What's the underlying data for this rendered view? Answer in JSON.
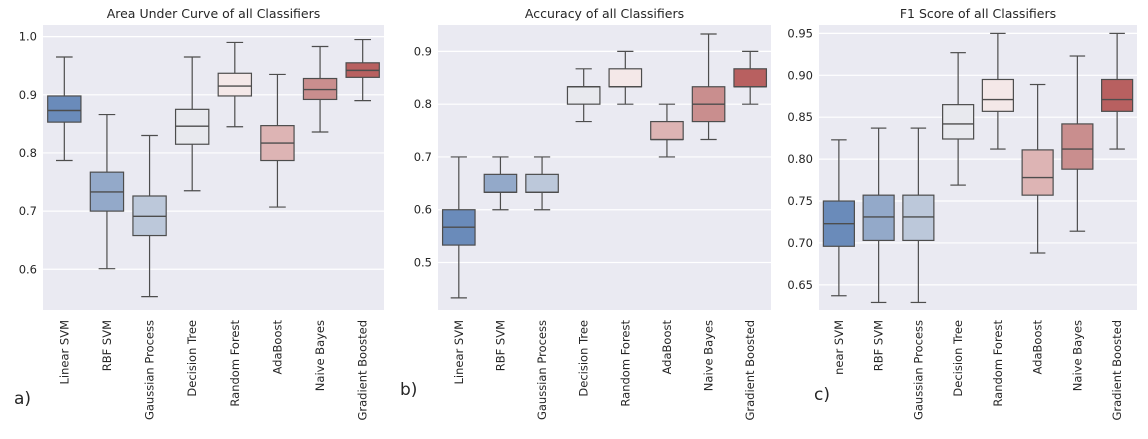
{
  "palette": [
    "#6a8bba",
    "#93a9c9",
    "#bcc8da",
    "#e8e9ee",
    "#f4e8e8",
    "#ddb4b4",
    "#c98e8e",
    "#b86060"
  ],
  "chart_data": [
    {
      "type": "box",
      "panel_label": "a)",
      "title": "Area Under Curve of all Classifiers",
      "xlabel": "",
      "ylabel": "",
      "ylim": [
        0.53,
        1.02
      ],
      "yticks": [
        0.6,
        0.7,
        0.8,
        0.9,
        1.0
      ],
      "ytick_labels": [
        "0.6",
        "0.7",
        "0.8",
        "0.9",
        "1.0"
      ],
      "categories": [
        "Linear SVM",
        "RBF SVM",
        "Gaussian Process",
        "Decision Tree",
        "Random Forest",
        "AdaBoost",
        "Naive Bayes",
        "Gradient Boosted"
      ],
      "series": [
        {
          "name": "Linear SVM",
          "whislo": 0.787,
          "q1": 0.853,
          "med": 0.873,
          "q3": 0.898,
          "whishi": 0.965
        },
        {
          "name": "RBF SVM",
          "whislo": 0.601,
          "q1": 0.7,
          "med": 0.733,
          "q3": 0.767,
          "whishi": 0.866
        },
        {
          "name": "Gaussian Process",
          "whislo": 0.553,
          "q1": 0.658,
          "med": 0.691,
          "q3": 0.726,
          "whishi": 0.83
        },
        {
          "name": "Decision Tree",
          "whislo": 0.735,
          "q1": 0.815,
          "med": 0.846,
          "q3": 0.875,
          "whishi": 0.965
        },
        {
          "name": "Random Forest",
          "whislo": 0.845,
          "q1": 0.898,
          "med": 0.915,
          "q3": 0.937,
          "whishi": 0.99
        },
        {
          "name": "AdaBoost",
          "whislo": 0.707,
          "q1": 0.787,
          "med": 0.817,
          "q3": 0.847,
          "whishi": 0.935
        },
        {
          "name": "Naive Bayes",
          "whislo": 0.836,
          "q1": 0.892,
          "med": 0.909,
          "q3": 0.928,
          "whishi": 0.983
        },
        {
          "name": "Gradient Boosted",
          "whislo": 0.89,
          "q1": 0.93,
          "med": 0.942,
          "q3": 0.955,
          "whishi": 0.995
        }
      ]
    },
    {
      "type": "box",
      "panel_label": "b)",
      "title": "Accuracy of all Classifiers",
      "xlabel": "",
      "ylabel": "",
      "ylim": [
        0.41,
        0.95
      ],
      "yticks": [
        0.5,
        0.6,
        0.7,
        0.8,
        0.9
      ],
      "ytick_labels": [
        "0.5",
        "0.6",
        "0.7",
        "0.8",
        "0.9"
      ],
      "categories": [
        "Linear SVM",
        "RBF SVM",
        "Gaussian Process",
        "Decision Tree",
        "Random Forest",
        "AdaBoost",
        "Naive Bayes",
        "Gradient Boosted"
      ],
      "series": [
        {
          "name": "Linear SVM",
          "whislo": 0.433,
          "q1": 0.533,
          "med": 0.567,
          "q3": 0.6,
          "whishi": 0.7
        },
        {
          "name": "RBF SVM",
          "whislo": 0.6,
          "q1": 0.633,
          "med": 0.633,
          "q3": 0.667,
          "whishi": 0.7
        },
        {
          "name": "Gaussian Process",
          "whislo": 0.6,
          "q1": 0.633,
          "med": 0.633,
          "q3": 0.667,
          "whishi": 0.7
        },
        {
          "name": "Decision Tree",
          "whislo": 0.767,
          "q1": 0.8,
          "med": 0.833,
          "q3": 0.833,
          "whishi": 0.867
        },
        {
          "name": "Random Forest",
          "whislo": 0.8,
          "q1": 0.833,
          "med": 0.833,
          "q3": 0.867,
          "whishi": 0.9
        },
        {
          "name": "AdaBoost",
          "whislo": 0.7,
          "q1": 0.733,
          "med": 0.733,
          "q3": 0.767,
          "whishi": 0.8
        },
        {
          "name": "Naive Bayes",
          "whislo": 0.733,
          "q1": 0.767,
          "med": 0.8,
          "q3": 0.833,
          "whishi": 0.933
        },
        {
          "name": "Gradient Boosted",
          "whislo": 0.8,
          "q1": 0.833,
          "med": 0.833,
          "q3": 0.867,
          "whishi": 0.9
        }
      ]
    },
    {
      "type": "box",
      "panel_label": "c)",
      "title": "F1 Score of all Classifiers",
      "xlabel": "",
      "ylabel": "",
      "ylim": [
        0.62,
        0.96
      ],
      "yticks": [
        0.65,
        0.7,
        0.75,
        0.8,
        0.85,
        0.9,
        0.95
      ],
      "ytick_labels": [
        "0.65",
        "0.70",
        "0.75",
        "0.80",
        "0.85",
        "0.90",
        "0.95"
      ],
      "categories": [
        "near SVM",
        "RBF SVM",
        "Gaussian Process",
        "Decision Tree",
        "Random Forest",
        "AdaBoost",
        "Naive Bayes",
        "Gradient Boosted"
      ],
      "series": [
        {
          "name": "near SVM",
          "whislo": 0.637,
          "q1": 0.696,
          "med": 0.723,
          "q3": 0.75,
          "whishi": 0.823
        },
        {
          "name": "RBF SVM",
          "whislo": 0.629,
          "q1": 0.703,
          "med": 0.731,
          "q3": 0.757,
          "whishi": 0.837
        },
        {
          "name": "Gaussian Process",
          "whislo": 0.629,
          "q1": 0.703,
          "med": 0.731,
          "q3": 0.757,
          "whishi": 0.837
        },
        {
          "name": "Decision Tree",
          "whislo": 0.769,
          "q1": 0.824,
          "med": 0.842,
          "q3": 0.865,
          "whishi": 0.927
        },
        {
          "name": "Random Forest",
          "whislo": 0.812,
          "q1": 0.857,
          "med": 0.871,
          "q3": 0.895,
          "whishi": 0.95
        },
        {
          "name": "AdaBoost",
          "whislo": 0.688,
          "q1": 0.757,
          "med": 0.778,
          "q3": 0.811,
          "whishi": 0.889
        },
        {
          "name": "Naive Bayes",
          "whislo": 0.714,
          "q1": 0.788,
          "med": 0.812,
          "q3": 0.842,
          "whishi": 0.923
        },
        {
          "name": "Gradient Boosted",
          "whislo": 0.812,
          "q1": 0.857,
          "med": 0.871,
          "q3": 0.895,
          "whishi": 0.95
        }
      ]
    }
  ]
}
